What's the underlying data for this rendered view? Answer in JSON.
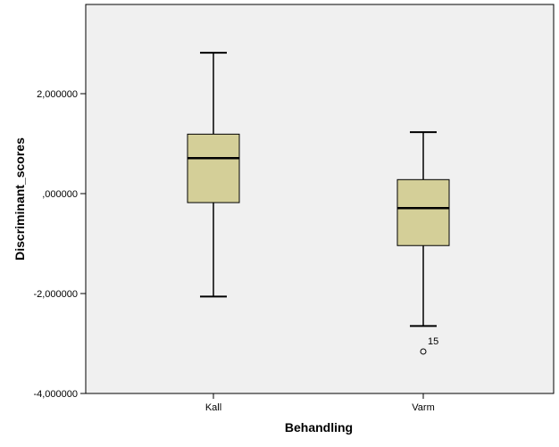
{
  "chart_data": {
    "type": "boxplot",
    "title": "",
    "xlabel": "Behandling",
    "ylabel": "Discriminant_scores",
    "ylim": [
      -4,
      3.8
    ],
    "yticks": [
      {
        "value": 2,
        "label": "2,000000"
      },
      {
        "value": 0,
        "label": ",000000"
      },
      {
        "value": -2,
        "label": "-2,000000"
      },
      {
        "value": -4,
        "label": "-4,000000"
      }
    ],
    "categories": [
      "Kall",
      "Varm"
    ],
    "boxes": [
      {
        "category": "Kall",
        "whisker_low": -2.06,
        "q1": -0.18,
        "median": 0.71,
        "q3": 1.19,
        "whisker_high": 2.82,
        "outliers": []
      },
      {
        "category": "Varm",
        "whisker_low": -2.65,
        "q1": -1.04,
        "median": -0.29,
        "q3": 0.28,
        "whisker_high": 1.23,
        "outliers": [
          {
            "value": -3.16,
            "label": "15"
          }
        ]
      }
    ],
    "colors": {
      "plot_background": "#f0f0f0",
      "box_fill": "#d4cf98",
      "line": "#000000"
    }
  }
}
